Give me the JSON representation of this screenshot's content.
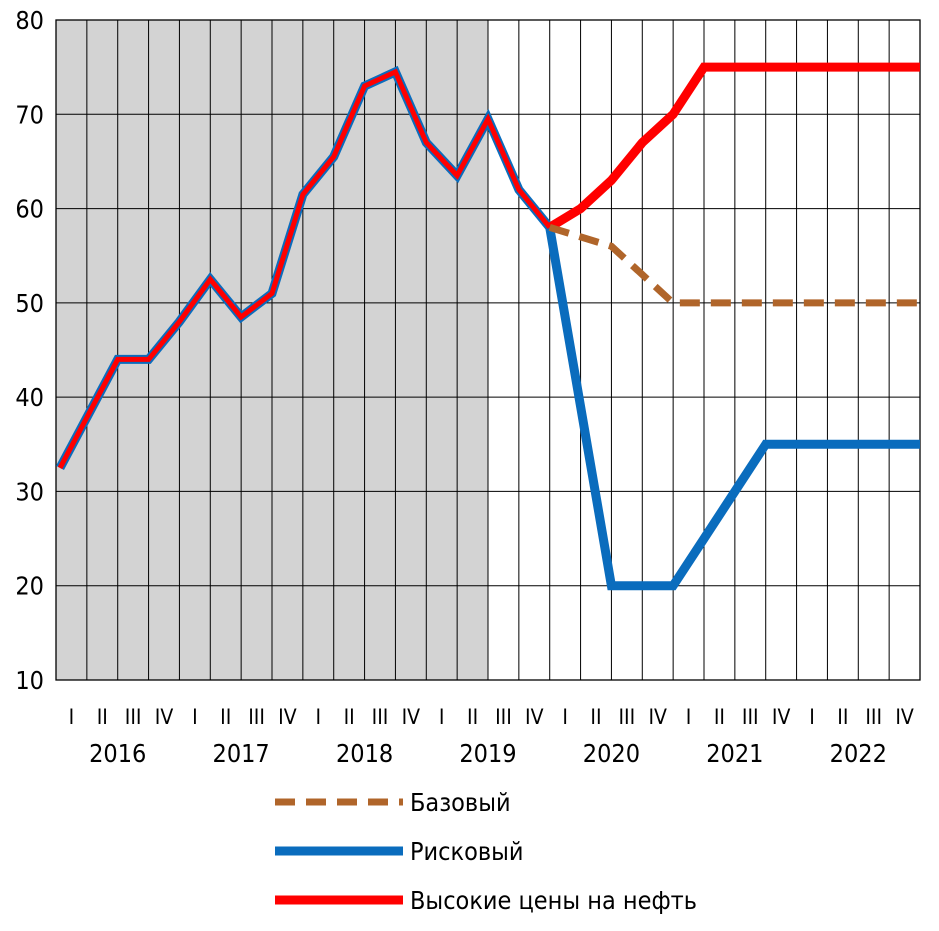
{
  "chart_data": {
    "type": "line",
    "y_axis": {
      "min": 10,
      "max": 80,
      "ticks": [
        10,
        20,
        30,
        40,
        50,
        60,
        70,
        80
      ]
    },
    "quarter_labels": [
      "I",
      "II",
      "III",
      "IV",
      "I",
      "II",
      "III",
      "IV",
      "I",
      "II",
      "III",
      "IV",
      "I",
      "II",
      "III",
      "IV",
      "I",
      "II",
      "III",
      "IV",
      "I",
      "II",
      "III",
      "IV",
      "I",
      "II",
      "III",
      "IV"
    ],
    "year_labels": [
      "2016",
      "2017",
      "2018",
      "2019",
      "2020",
      "2021",
      "2022"
    ],
    "shaded_region": {
      "from_index": 0,
      "to_index": 14,
      "color": "#d3d3d3"
    },
    "grid": true,
    "history": [
      32.5,
      44,
      44,
      48,
      52.5,
      48.5,
      51,
      61.5,
      65.5,
      73,
      74.5,
      67,
      63.5,
      69.5,
      62,
      58
    ],
    "series": [
      {
        "name": "Базовый",
        "color": "#b0652a",
        "style": "dashed",
        "values": [
          null,
          null,
          null,
          null,
          null,
          null,
          null,
          null,
          null,
          null,
          null,
          null,
          null,
          null,
          null,
          58,
          57,
          56,
          53,
          50,
          50,
          50,
          50,
          50,
          50,
          50,
          50,
          50
        ]
      },
      {
        "name": "Рисковый",
        "color": "#0a6cbd",
        "style": "solid",
        "values": [
          32.5,
          44,
          44,
          48,
          52.5,
          48.5,
          51,
          61.5,
          65.5,
          73,
          74.5,
          67,
          63.5,
          69.5,
          62,
          58,
          39,
          20,
          20,
          20,
          25,
          30,
          35,
          35,
          35,
          35,
          35,
          35
        ]
      },
      {
        "name": "Высокие цены на нефть",
        "color": "#ff0000",
        "style": "solid",
        "values": [
          32.5,
          44,
          44,
          48,
          52.5,
          48.5,
          51,
          61.5,
          65.5,
          73,
          74.5,
          67,
          63.5,
          69.5,
          62,
          58,
          60,
          63,
          67,
          70,
          75,
          75,
          75,
          75,
          75,
          75,
          75,
          75
        ]
      }
    ],
    "legend_position": "bottom-center"
  }
}
